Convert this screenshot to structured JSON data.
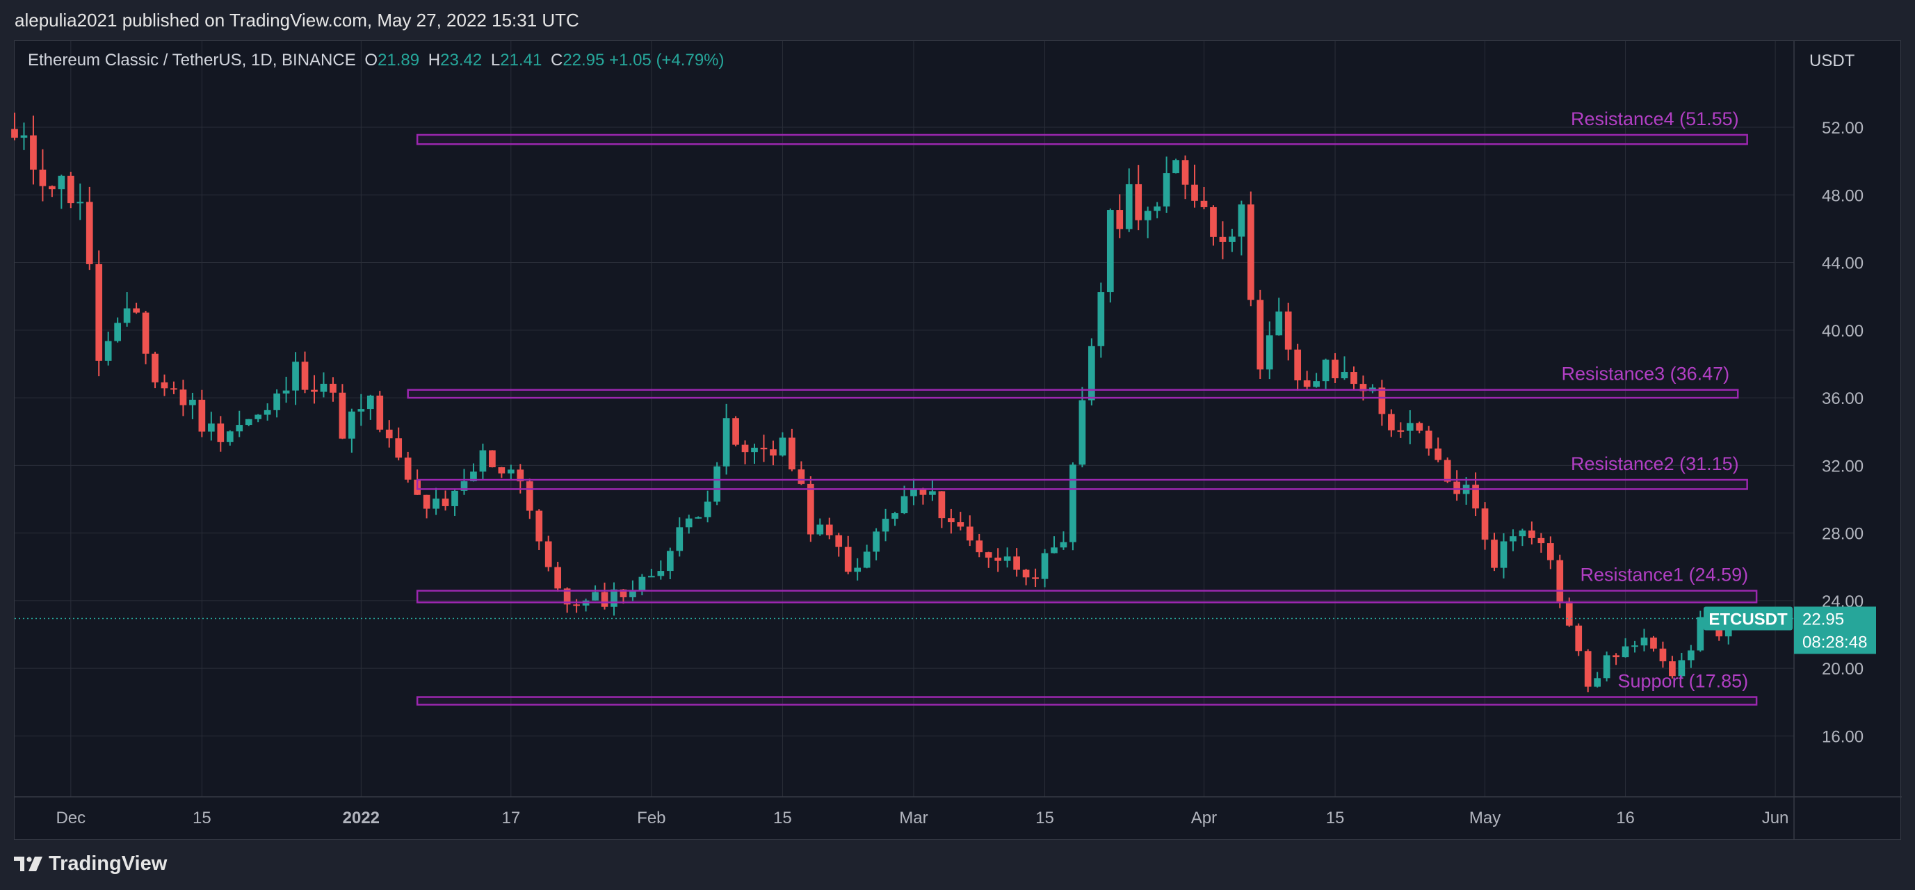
{
  "publisher_line": "alepulia2021 published on TradingView.com, May 27, 2022 15:31 UTC",
  "legend": {
    "symbol": "Ethereum Classic / TetherUS, 1D, BINANCE",
    "open_label": "O",
    "open": "21.89",
    "high_label": "H",
    "high": "23.42",
    "low_label": "L",
    "low": "21.41",
    "close_label": "C",
    "close": "22.95",
    "change": "+1.05 (+4.79%)"
  },
  "footer": {
    "brand": "TradingView"
  },
  "colors": {
    "up": "#26a69a",
    "down": "#ef5350",
    "zone": "#9c27b0",
    "zone_label": "#b23fc4",
    "price_tag": "#26a69a",
    "background": "#131722"
  },
  "chart_data": {
    "type": "candlestick",
    "title": "",
    "currency_label": "USDT",
    "ylim": [
      12.4,
      57.1
    ],
    "y_ticks": [
      "52.00",
      "48.00",
      "44.00",
      "40.00",
      "36.00",
      "32.00",
      "28.00",
      "24.00",
      "20.00",
      "16.00"
    ],
    "x_range": [
      "2021-11-25",
      "2022-06-03"
    ],
    "x_ticks": [
      {
        "date": "2021-12-01",
        "label": "Dec"
      },
      {
        "date": "2021-12-15",
        "label": "15"
      },
      {
        "date": "2022-01-01",
        "label": "2022"
      },
      {
        "date": "2022-01-17",
        "label": "17"
      },
      {
        "date": "2022-02-01",
        "label": "Feb"
      },
      {
        "date": "2022-02-15",
        "label": "15"
      },
      {
        "date": "2022-03-01",
        "label": "Mar"
      },
      {
        "date": "2022-03-15",
        "label": "15"
      },
      {
        "date": "2022-04-01",
        "label": "Apr"
      },
      {
        "date": "2022-04-15",
        "label": "15"
      },
      {
        "date": "2022-05-01",
        "label": "May"
      },
      {
        "date": "2022-05-16",
        "label": "16"
      },
      {
        "date": "2022-06-01",
        "label": "Jun"
      }
    ],
    "grid": true,
    "last_price": {
      "symbol": "ETCUSDT",
      "value": "22.95",
      "countdown": "08:28:48"
    },
    "zones": [
      {
        "label": "Resistance4 (51.55)",
        "value": 51.55,
        "low": 51.0,
        "high": 51.55,
        "start": "2022-01-07",
        "end": "2022-05-29"
      },
      {
        "label": "Resistance3 (36.47)",
        "value": 36.47,
        "low": 36.0,
        "high": 36.47,
        "start": "2022-01-06",
        "end": "2022-05-28"
      },
      {
        "label": "Resistance2 (31.15)",
        "value": 31.15,
        "low": 30.6,
        "high": 31.15,
        "start": "2022-01-07",
        "end": "2022-05-29"
      },
      {
        "label": "Resistance1 (24.59)",
        "value": 24.59,
        "low": 23.9,
        "high": 24.59,
        "start": "2022-01-07",
        "end": "2022-05-30"
      },
      {
        "label": "Support (17.85)",
        "value": 17.85,
        "low": 17.85,
        "high": 18.3,
        "start": "2022-01-07",
        "end": "2022-05-30"
      }
    ],
    "anchors": [
      [
        "2021-11-25",
        51.0
      ],
      [
        "2021-11-30",
        48.5
      ],
      [
        "2021-12-02",
        48.0
      ],
      [
        "2021-12-04",
        38.5
      ],
      [
        "2021-12-08",
        41.0
      ],
      [
        "2021-12-10",
        37.0
      ],
      [
        "2021-12-13",
        36.0
      ],
      [
        "2021-12-16",
        34.0
      ],
      [
        "2021-12-22",
        35.0
      ],
      [
        "2021-12-25",
        37.5
      ],
      [
        "2021-12-28",
        37.0
      ],
      [
        "2021-12-30",
        34.3
      ],
      [
        "2022-01-02",
        35.5
      ],
      [
        "2022-01-05",
        32.0
      ],
      [
        "2022-01-07",
        30.0
      ],
      [
        "2022-01-10",
        29.2
      ],
      [
        "2022-01-14",
        32.5
      ],
      [
        "2022-01-18",
        31.5
      ],
      [
        "2022-01-21",
        25.5
      ],
      [
        "2022-01-24",
        23.5
      ],
      [
        "2022-01-26",
        24.0
      ],
      [
        "2022-01-31",
        25.0
      ],
      [
        "2022-02-03",
        27.0
      ],
      [
        "2022-02-07",
        30.5
      ],
      [
        "2022-02-09",
        34.0
      ],
      [
        "2022-02-11",
        32.5
      ],
      [
        "2022-02-15",
        33.5
      ],
      [
        "2022-02-18",
        28.5
      ],
      [
        "2022-02-21",
        27.0
      ],
      [
        "2022-02-23",
        25.5
      ],
      [
        "2022-02-25",
        28.0
      ],
      [
        "2022-03-01",
        30.5
      ],
      [
        "2022-03-04",
        29.5
      ],
      [
        "2022-03-07",
        27.5
      ],
      [
        "2022-03-10",
        26.5
      ],
      [
        "2022-03-14",
        25.8
      ],
      [
        "2022-03-17",
        27.0
      ],
      [
        "2022-03-19",
        36.0
      ],
      [
        "2022-03-22",
        46.0
      ],
      [
        "2022-03-24",
        48.0
      ],
      [
        "2022-03-27",
        47.0
      ],
      [
        "2022-03-29",
        49.5
      ],
      [
        "2022-03-31",
        48.5
      ],
      [
        "2022-04-02",
        46.0
      ],
      [
        "2022-04-05",
        46.5
      ],
      [
        "2022-04-07",
        38.5
      ],
      [
        "2022-04-09",
        40.5
      ],
      [
        "2022-04-11",
        36.5
      ],
      [
        "2022-04-14",
        37.5
      ],
      [
        "2022-04-18",
        37.0
      ],
      [
        "2022-04-20",
        35.0
      ],
      [
        "2022-04-24",
        33.5
      ],
      [
        "2022-04-27",
        31.0
      ],
      [
        "2022-04-29",
        30.5
      ],
      [
        "2022-05-02",
        26.5
      ],
      [
        "2022-05-05",
        28.5
      ],
      [
        "2022-05-07",
        28.0
      ],
      [
        "2022-05-10",
        22.5
      ],
      [
        "2022-05-12",
        19.0
      ],
      [
        "2022-05-15",
        21.0
      ],
      [
        "2022-05-19",
        21.5
      ],
      [
        "2022-05-21",
        20.0
      ],
      [
        "2022-05-23",
        21.5
      ],
      [
        "2022-05-25",
        23.5
      ],
      [
        "2022-05-26",
        21.89
      ],
      [
        "2022-05-27",
        22.95
      ]
    ]
  }
}
